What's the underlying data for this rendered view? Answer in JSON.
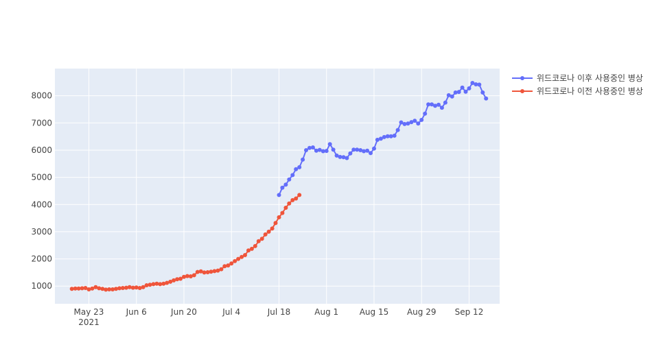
{
  "chart_data": {
    "type": "line",
    "title": "",
    "xlabel": "",
    "ylabel": "",
    "x_range": [
      "2021-05-13",
      "2021-09-21"
    ],
    "ylim": [
      350,
      9000
    ],
    "grid": true,
    "legend_placement": "top-right",
    "x_ticks": [
      {
        "date": "2021-05-23",
        "label": "May 23",
        "sublabel": "2021"
      },
      {
        "date": "2021-06-06",
        "label": "Jun 6",
        "sublabel": ""
      },
      {
        "date": "2021-06-20",
        "label": "Jun 20",
        "sublabel": ""
      },
      {
        "date": "2021-07-04",
        "label": "Jul 4",
        "sublabel": ""
      },
      {
        "date": "2021-07-18",
        "label": "Jul 18",
        "sublabel": ""
      },
      {
        "date": "2021-08-01",
        "label": "Aug 1",
        "sublabel": ""
      },
      {
        "date": "2021-08-15",
        "label": "Aug 15",
        "sublabel": ""
      },
      {
        "date": "2021-08-29",
        "label": "Aug 29",
        "sublabel": ""
      },
      {
        "date": "2021-09-12",
        "label": "Sep 12",
        "sublabel": ""
      }
    ],
    "y_ticks": [
      1000,
      2000,
      3000,
      4000,
      5000,
      6000,
      7000,
      8000
    ],
    "series": [
      {
        "name": "위드코로나 이후 사용중인 병상",
        "color": "#636efa",
        "start_date": "2021-07-18",
        "values": [
          4350,
          4620,
          4730,
          4920,
          5080,
          5300,
          5370,
          5650,
          6000,
          6080,
          6100,
          5980,
          6010,
          5960,
          5970,
          6220,
          6020,
          5800,
          5750,
          5740,
          5710,
          5880,
          6020,
          6020,
          6000,
          5960,
          5980,
          5890,
          6060,
          6380,
          6420,
          6480,
          6510,
          6510,
          6530,
          6740,
          7020,
          6960,
          6980,
          7030,
          7080,
          6980,
          7110,
          7340,
          7680,
          7680,
          7630,
          7670,
          7560,
          7750,
          8020,
          7970,
          8120,
          8140,
          8300,
          8150,
          8270,
          8470,
          8420,
          8410,
          8120,
          7900
        ]
      },
      {
        "name": "위드코로나 이전 사용중인 병상",
        "color": "#ef553b",
        "start_date": "2021-05-18",
        "values": [
          900,
          910,
          910,
          920,
          930,
          880,
          910,
          960,
          920,
          900,
          870,
          880,
          880,
          900,
          920,
          930,
          940,
          960,
          940,
          950,
          930,
          960,
          1030,
          1050,
          1070,
          1090,
          1070,
          1090,
          1120,
          1160,
          1210,
          1250,
          1270,
          1340,
          1370,
          1360,
          1400,
          1520,
          1540,
          1500,
          1510,
          1530,
          1550,
          1570,
          1620,
          1730,
          1760,
          1830,
          1920,
          2000,
          2070,
          2140,
          2310,
          2370,
          2470,
          2650,
          2740,
          2900,
          3000,
          3120,
          3320,
          3530,
          3690,
          3880,
          4040,
          4160,
          4220,
          4350
        ]
      }
    ]
  }
}
